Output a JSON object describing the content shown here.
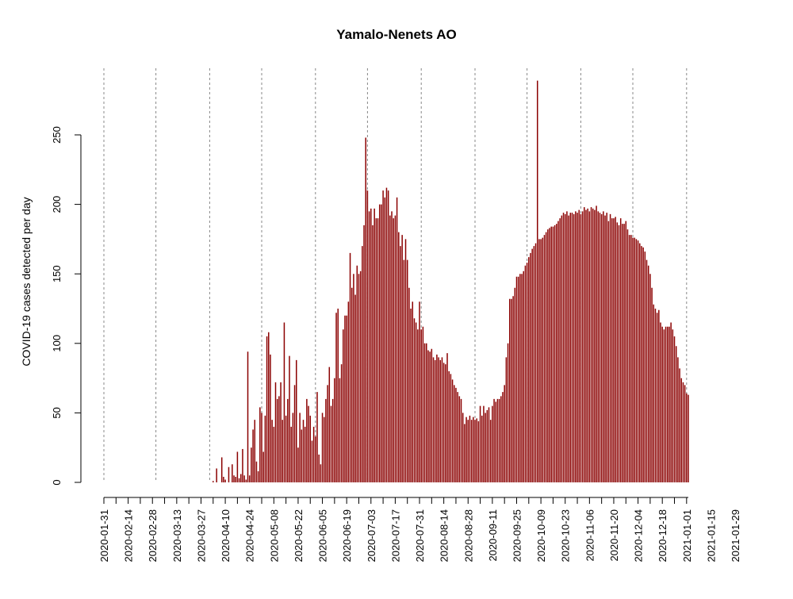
{
  "chart_data": {
    "type": "bar",
    "title": "Yamalo-Nenets AO",
    "xlabel": "",
    "ylabel": "COVID-19 cases detected per day",
    "ylim": [
      0,
      290
    ],
    "y_ticks": [
      0,
      50,
      100,
      150,
      200,
      250
    ],
    "x_ticks": [
      "2020-01-31",
      "2020-02-14",
      "2020-02-28",
      "2020-03-13",
      "2020-03-27",
      "2020-04-10",
      "2020-04-24",
      "2020-05-08",
      "2020-05-22",
      "2020-06-05",
      "2020-06-19",
      "2020-07-03",
      "2020-07-17",
      "2020-07-31",
      "2020-08-14",
      "2020-08-28",
      "2020-09-11",
      "2020-09-25",
      "2020-10-09",
      "2020-10-23",
      "2020-11-06",
      "2020-11-20",
      "2020-12-04",
      "2020-12-18",
      "2021-01-01",
      "2021-01-15",
      "2021-01-29"
    ],
    "vlines": [
      "2020-01-31",
      "2020-03-01",
      "2020-04-01",
      "2020-05-01",
      "2020-06-01",
      "2020-07-01",
      "2020-08-01",
      "2020-09-01",
      "2020-10-01",
      "2020-11-01",
      "2020-12-01",
      "2021-01-01"
    ],
    "bar_color": "#8b0000",
    "grid": "vertical dotted",
    "start_date": "2020-01-31",
    "values": [
      0,
      0,
      0,
      0,
      0,
      0,
      0,
      0,
      0,
      0,
      0,
      0,
      0,
      0,
      0,
      0,
      0,
      0,
      0,
      0,
      0,
      0,
      0,
      0,
      0,
      0,
      0,
      0,
      0,
      0,
      0,
      0,
      0,
      0,
      0,
      0,
      0,
      0,
      0,
      0,
      0,
      0,
      0,
      0,
      0,
      0,
      0,
      0,
      0,
      0,
      0,
      0,
      0,
      0,
      0,
      0,
      0,
      0,
      0,
      0,
      0,
      0,
      0,
      1,
      0,
      10,
      0,
      0,
      18,
      4,
      2,
      0,
      11,
      0,
      13,
      5,
      4,
      22,
      3,
      6,
      24,
      5,
      2,
      94,
      5,
      25,
      38,
      45,
      15,
      8,
      54,
      50,
      22,
      48,
      105,
      108,
      92,
      45,
      40,
      72,
      60,
      62,
      72,
      45,
      115,
      48,
      60,
      91,
      40,
      50,
      70,
      88,
      25,
      50,
      38,
      45,
      40,
      60,
      55,
      48,
      30,
      40,
      33,
      65,
      20,
      13,
      50,
      47,
      60,
      70,
      83,
      55,
      60,
      75,
      122,
      125,
      75,
      85,
      110,
      120,
      120,
      130,
      165,
      140,
      150,
      135,
      156,
      150,
      152,
      170,
      185,
      248,
      210,
      195,
      197,
      185,
      197,
      190,
      190,
      200,
      200,
      210,
      205,
      212,
      210,
      192,
      195,
      190,
      192,
      205,
      180,
      170,
      178,
      160,
      175,
      160,
      140,
      125,
      130,
      118,
      115,
      110,
      130,
      110,
      112,
      100,
      100,
      95,
      94,
      96,
      90,
      88,
      92,
      90,
      88,
      90,
      86,
      85,
      93,
      80,
      78,
      74,
      70,
      68,
      65,
      62,
      60,
      50,
      42,
      47,
      45,
      48,
      45,
      47,
      45,
      46,
      44,
      55,
      48,
      55,
      50,
      52,
      54,
      45,
      55,
      60,
      58,
      60,
      60,
      62,
      65,
      70,
      90,
      100,
      132,
      132,
      134,
      140,
      148,
      148,
      150,
      150,
      152,
      156,
      158,
      162,
      165,
      168,
      170,
      172,
      289,
      175,
      175,
      176,
      178,
      180,
      182,
      183,
      184,
      184,
      185,
      186,
      188,
      190,
      192,
      194,
      193,
      195,
      192,
      194,
      194,
      193,
      195,
      194,
      196,
      193,
      195,
      198,
      196,
      197,
      195,
      198,
      197,
      196,
      199,
      195,
      194,
      193,
      195,
      192,
      194,
      188,
      193,
      190,
      190,
      191,
      187,
      185,
      190,
      186,
      186,
      188,
      182,
      178,
      178,
      176,
      176,
      175,
      174,
      172,
      170,
      169,
      166,
      160,
      156,
      150,
      140,
      128,
      125,
      122,
      124,
      115,
      112,
      110,
      112,
      112,
      112,
      115,
      110,
      105,
      98,
      90,
      82,
      75,
      72,
      70,
      64,
      63
    ]
  }
}
